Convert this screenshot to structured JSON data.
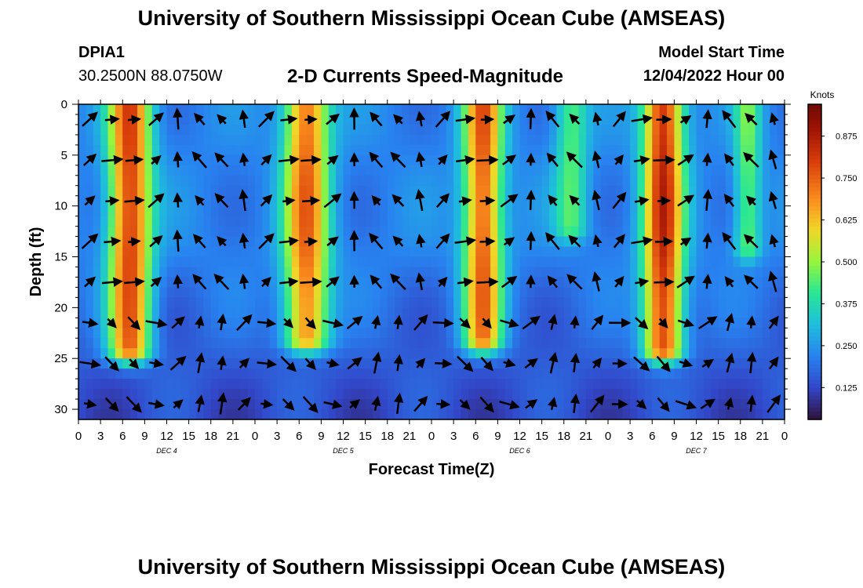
{
  "header": {
    "title": "University of Southern Mississippi Ocean Cube (AMSEAS)",
    "station_id": "DPIA1",
    "station_coords": "30.2500N  88.0750W",
    "subtitle": "2-D Currents Speed-Magnitude",
    "model_start_label": "Model Start Time",
    "model_start_value": "12/04/2022 Hour 00"
  },
  "footer": {
    "title": "University of Southern Mississippi Ocean Cube (AMSEAS)"
  },
  "chart_data": {
    "type": "heatmap",
    "title": "2-D Currents Speed-Magnitude",
    "xlabel": "Forecast Time(Z)",
    "ylabel": "Depth (ft)",
    "x_ticks": [
      "0",
      "3",
      "6",
      "9",
      "12",
      "15",
      "18",
      "21",
      "0",
      "3",
      "6",
      "9",
      "12",
      "15",
      "18",
      "21",
      "0",
      "3",
      "6",
      "9",
      "12",
      "15",
      "18",
      "21",
      "0",
      "3",
      "6",
      "9",
      "12",
      "15",
      "18",
      "21",
      "0"
    ],
    "x_range_hours": [
      0,
      96
    ],
    "date_labels": [
      {
        "text": "DEC 4",
        "hour": 12
      },
      {
        "text": "DEC 5",
        "hour": 36
      },
      {
        "text": "DEC 6",
        "hour": 60
      },
      {
        "text": "DEC 7",
        "hour": 84
      }
    ],
    "y_ticks": [
      "0",
      "5",
      "10",
      "15",
      "20",
      "25",
      "30"
    ],
    "ylim": [
      0,
      31
    ],
    "colorbar": {
      "unit": "Knots",
      "range": [
        0.03,
        0.97
      ],
      "ticks": [
        "0.875",
        "0.750",
        "0.625",
        "0.500",
        "0.375",
        "0.250",
        "0.125"
      ],
      "tick_values": [
        0.875,
        0.75,
        0.625,
        0.5,
        0.375,
        0.25,
        0.125
      ]
    },
    "speed_peaks": [
      {
        "center_hour": 7,
        "speed": 0.78,
        "width_hours": 2.8,
        "bottom_depth_ft": 24
      },
      {
        "center_hour": 31,
        "speed": 0.72,
        "width_hours": 3.0,
        "bottom_depth_ft": 23
      },
      {
        "center_hour": 55,
        "speed": 0.74,
        "width_hours": 2.6,
        "bottom_depth_ft": 23
      },
      {
        "center_hour": 79.5,
        "speed": 0.82,
        "width_hours": 2.7,
        "bottom_depth_ft": 24
      },
      {
        "center_hour": 67,
        "speed": 0.42,
        "width_hours": 2.2,
        "bottom_depth_ft": 12
      },
      {
        "center_hour": 91,
        "speed": 0.44,
        "width_hours": 1.8,
        "bottom_depth_ft": 14
      }
    ]
  }
}
